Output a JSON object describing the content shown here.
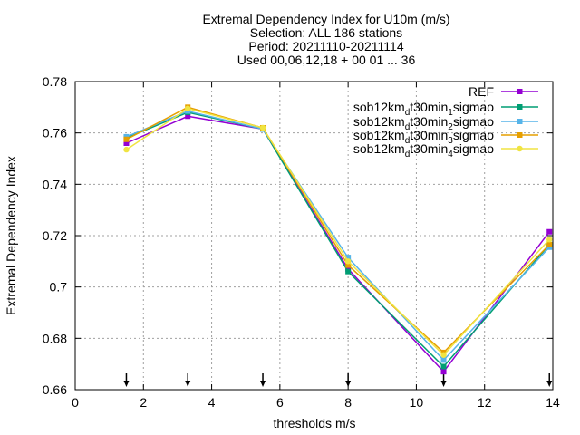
{
  "chart_data": {
    "type": "line",
    "title_lines": [
      "Extremal Dependency Index  for U10m (m/s)",
      "Selection: ALL    186 stations",
      "Period: 20211110-20211114",
      "Used 00,06,12,18 + 00 01 ... 36"
    ],
    "xlabel": "thresholds m/s",
    "ylabel": "Extremal Dependency Index",
    "xlim": [
      0,
      14
    ],
    "ylim": [
      0.66,
      0.78
    ],
    "xticks": [
      0,
      2,
      4,
      6,
      8,
      10,
      12,
      14
    ],
    "xtick_labels": [
      "0",
      "2",
      "4",
      "6",
      "8",
      "10",
      "12",
      "14"
    ],
    "yticks": [
      0.66,
      0.68,
      0.7,
      0.72,
      0.74,
      0.76,
      0.78
    ],
    "ytick_labels": [
      "0.66",
      "0.68",
      "0.7",
      "0.72",
      "0.74",
      "0.76",
      "0.78"
    ],
    "grid": true,
    "legend_position": "top-right",
    "threshold_markers": [
      1.5,
      3.3,
      5.5,
      8.0,
      10.8,
      13.9
    ],
    "x": [
      1.5,
      3.3,
      5.5,
      8.0,
      10.8,
      13.9
    ],
    "series": [
      {
        "name": "REF",
        "legend": {
          "pre": "REF",
          "sub": "",
          "post": ""
        },
        "color": "#9400d3",
        "marker": "square",
        "values": [
          0.756,
          0.7665,
          0.7615,
          0.707,
          0.667,
          0.7215
        ]
      },
      {
        "name": "sob12km_dt30min_1sigmao",
        "legend": {
          "pre": "sob12km",
          "sub": "d",
          "post": "t30min",
          "sub2": "1",
          "post2": "sigmao"
        },
        "color": "#009e73",
        "marker": "square",
        "values": [
          0.758,
          0.768,
          0.7615,
          0.706,
          0.669,
          0.7165
        ]
      },
      {
        "name": "sob12km_dt30min_2sigmao",
        "legend": {
          "pre": "sob12km",
          "sub": "d",
          "post": "t30min",
          "sub2": "2",
          "post2": "sigmao"
        },
        "color": "#56b4e9",
        "marker": "square",
        "values": [
          0.7585,
          0.7685,
          0.7615,
          0.7115,
          0.6715,
          0.7155
        ]
      },
      {
        "name": "sob12km_dt30min_3sigmao",
        "legend": {
          "pre": "sob12km",
          "sub": "d",
          "post": "t30min",
          "sub2": "3",
          "post2": "sigmao"
        },
        "color": "#e69f00",
        "marker": "square",
        "values": [
          0.7575,
          0.77,
          0.762,
          0.7085,
          0.6745,
          0.7165
        ]
      },
      {
        "name": "sob12km_dt30min_4sigmao",
        "legend": {
          "pre": "sob12km",
          "sub": "d",
          "post": "t30min",
          "sub2": "4",
          "post2": "sigmao"
        },
        "color": "#f0e442",
        "marker": "circle",
        "values": [
          0.7535,
          0.7695,
          0.762,
          0.71,
          0.6735,
          0.7185
        ]
      }
    ]
  }
}
